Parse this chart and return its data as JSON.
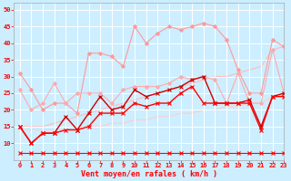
{
  "x": [
    0,
    1,
    2,
    3,
    4,
    5,
    6,
    7,
    8,
    9,
    10,
    11,
    12,
    13,
    14,
    15,
    16,
    17,
    18,
    19,
    20,
    21,
    22,
    23
  ],
  "series": [
    {
      "color": "#ff9999",
      "linewidth": 0.8,
      "values": [
        31,
        26,
        20,
        22,
        22,
        19,
        37,
        37,
        36,
        33,
        45,
        40,
        43,
        45,
        44,
        45,
        46,
        45,
        41,
        32,
        25,
        25,
        41,
        39
      ],
      "marker": "D",
      "markersize": 2.0,
      "zorder": 2
    },
    {
      "color": "#ffaaaa",
      "linewidth": 0.8,
      "values": [
        26,
        20,
        22,
        28,
        22,
        25,
        25,
        25,
        22,
        26,
        27,
        27,
        27,
        28,
        30,
        29,
        30,
        29,
        22,
        31,
        22,
        22,
        38,
        25
      ],
      "marker": "D",
      "markersize": 2.0,
      "zorder": 2
    },
    {
      "color": "#ffbbbb",
      "linewidth": 0.8,
      "values": [
        15,
        15,
        15,
        16,
        17,
        18,
        19,
        20,
        21,
        22,
        23,
        24,
        25,
        26,
        27,
        28,
        29,
        30,
        30,
        31,
        32,
        33,
        38,
        39
      ],
      "marker": null,
      "markersize": 0,
      "zorder": 1
    },
    {
      "color": "#ffcccc",
      "linewidth": 0.8,
      "values": [
        14,
        14,
        14,
        14,
        14,
        15,
        15,
        15,
        16,
        16,
        17,
        17,
        18,
        18,
        19,
        19,
        20,
        20,
        21,
        21,
        22,
        22,
        24,
        25
      ],
      "marker": null,
      "markersize": 0,
      "zorder": 1
    },
    {
      "color": "#cc0000",
      "linewidth": 1.0,
      "values": [
        15,
        10,
        13,
        13,
        18,
        14,
        19,
        24,
        20,
        21,
        26,
        24,
        25,
        26,
        27,
        29,
        30,
        22,
        22,
        22,
        23,
        15,
        24,
        25
      ],
      "marker": "x",
      "markersize": 2.5,
      "zorder": 3
    },
    {
      "color": "#ff0000",
      "linewidth": 1.0,
      "values": [
        15,
        10,
        13,
        13,
        14,
        14,
        15,
        19,
        19,
        19,
        22,
        21,
        22,
        22,
        25,
        27,
        22,
        22,
        22,
        22,
        22,
        14,
        24,
        24
      ],
      "marker": "x",
      "markersize": 2.5,
      "zorder": 3
    },
    {
      "color": "#ff0000",
      "linewidth": 0.8,
      "values": [
        7,
        7,
        7,
        7,
        7,
        7,
        7,
        7,
        7,
        7,
        7,
        7,
        7,
        7,
        7,
        7,
        7,
        7,
        7,
        7,
        7,
        7,
        7,
        7
      ],
      "marker": "x",
      "markersize": 2.5,
      "zorder": 3
    }
  ],
  "xlabel": "Vent moyen/en rafales ( km/h )",
  "xlim": [
    -0.5,
    23
  ],
  "ylim": [
    5,
    52
  ],
  "yticks": [
    10,
    15,
    20,
    25,
    30,
    35,
    40,
    45,
    50
  ],
  "xticks": [
    0,
    1,
    2,
    3,
    4,
    5,
    6,
    7,
    8,
    9,
    10,
    11,
    12,
    13,
    14,
    15,
    16,
    17,
    18,
    19,
    20,
    21,
    22,
    23
  ],
  "bg_color": "#cceeff",
  "grid_color": "#ffffff",
  "xlabel_color": "#ff0000",
  "tick_color": "#ff0000"
}
